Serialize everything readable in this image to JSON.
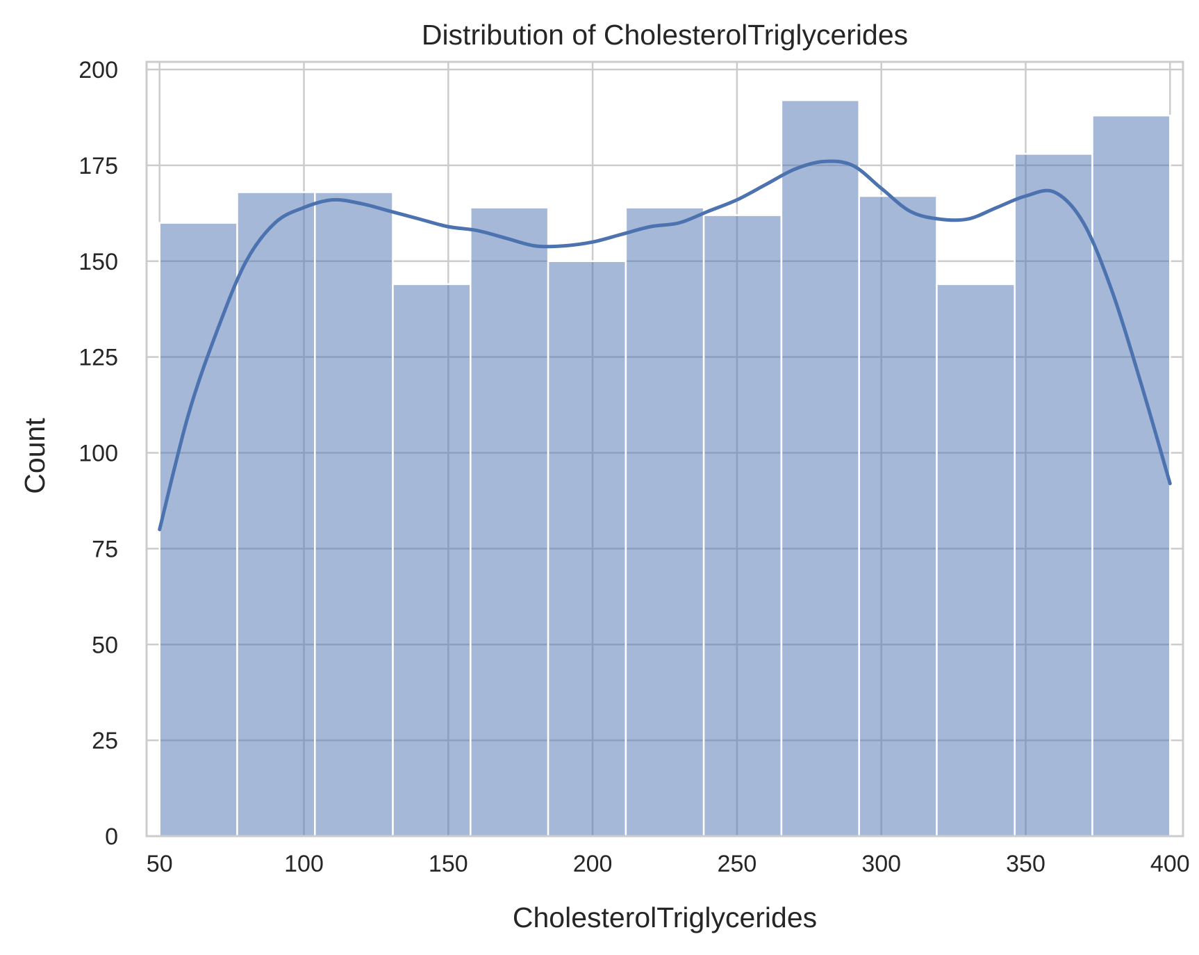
{
  "chart_data": {
    "type": "bar",
    "subtype": "histogram-with-kde",
    "title": "Distribution of CholesterolTriglycerides",
    "xlabel": "CholesterolTriglycerides",
    "ylabel": "Count",
    "xlim": [
      45.5,
      404.5
    ],
    "ylim": [
      0,
      202
    ],
    "xticks": [
      50,
      100,
      150,
      200,
      250,
      300,
      350,
      400
    ],
    "yticks": [
      0,
      25,
      50,
      75,
      100,
      125,
      150,
      175,
      200
    ],
    "grid": true,
    "bins": [
      {
        "start": 50.0,
        "end": 76.9,
        "count": 160
      },
      {
        "start": 76.9,
        "end": 103.8,
        "count": 168
      },
      {
        "start": 103.8,
        "end": 130.8,
        "count": 168
      },
      {
        "start": 130.8,
        "end": 157.7,
        "count": 144
      },
      {
        "start": 157.7,
        "end": 184.6,
        "count": 164
      },
      {
        "start": 184.6,
        "end": 211.5,
        "count": 150
      },
      {
        "start": 211.5,
        "end": 238.5,
        "count": 164
      },
      {
        "start": 238.5,
        "end": 265.4,
        "count": 162
      },
      {
        "start": 265.4,
        "end": 292.3,
        "count": 192
      },
      {
        "start": 292.3,
        "end": 319.2,
        "count": 167
      },
      {
        "start": 319.2,
        "end": 346.2,
        "count": 144
      },
      {
        "start": 346.2,
        "end": 373.1,
        "count": 178
      },
      {
        "start": 373.1,
        "end": 400.0,
        "count": 188
      }
    ],
    "kde": {
      "x": [
        50,
        60,
        70,
        80,
        90,
        100,
        110,
        120,
        130,
        140,
        150,
        160,
        170,
        180,
        190,
        200,
        210,
        220,
        230,
        240,
        250,
        260,
        270,
        280,
        290,
        300,
        310,
        320,
        330,
        340,
        350,
        360,
        370,
        380,
        390,
        400
      ],
      "y": [
        80,
        110,
        132,
        150,
        160,
        164,
        166,
        165,
        163,
        161,
        159,
        158,
        156,
        154,
        154,
        155,
        157,
        159,
        160,
        163,
        166,
        170,
        174,
        176,
        175,
        169,
        163,
        161,
        161,
        164,
        167,
        168,
        160,
        142,
        118,
        92
      ]
    },
    "colors": {
      "bar_fill": "#4c72b0",
      "bar_opacity": 0.5,
      "bar_edge": "#ffffff",
      "kde_line": "#4c72b0",
      "grid": "#cccccc",
      "axes_edge": "#cccccc",
      "background": "#ffffff"
    }
  }
}
